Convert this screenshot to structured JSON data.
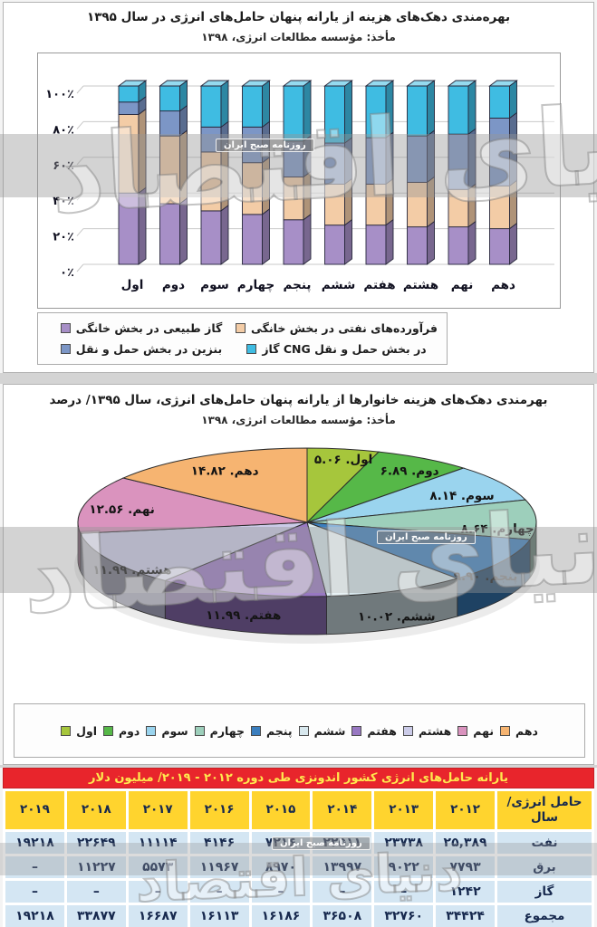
{
  "bar_section": {
    "title": "بهره‌مندی دهک‌های هزینه از یارانه پنهان حامل‌های انرژی در سال ۱۳۹۵",
    "source": "مأخذ: مؤسسه مطالعات انرژی، ۱۳۹۸"
  },
  "pie_section": {
    "title": "بهرمندی دهک‌های هزینه خانوارها از یارانه پنهان حامل‌های انرژی، سال ۱۳۹۵/ درصد",
    "source": "مأخذ: مؤسسه مطالعات انرژی، ۱۳۹۸"
  },
  "watermark": {
    "badge": "روزنامه صبح ایران",
    "brand": "دنیای اقتصاد"
  },
  "chart_data": [
    {
      "type": "bar",
      "subtype": "stacked-100-3d",
      "title": "بهره‌مندی دهک‌های هزینه از یارانه پنهان حامل‌های انرژی در سال ۱۳۹۵",
      "source": "مأخذ: مؤسسه مطالعات انرژی، ۱۳۹۸",
      "categories": [
        "اول",
        "دوم",
        "سوم",
        "چهارم",
        "پنجم",
        "ششم",
        "هفتم",
        "هشتم",
        "نهم",
        "دهم"
      ],
      "y_tick_labels": [
        "۰٪",
        "۲۰٪",
        "۴۰٪",
        "۶۰٪",
        "۸۰٪",
        "۱۰۰٪"
      ],
      "ylim": [
        0,
        100
      ],
      "grid": true,
      "legend_position": "bottom",
      "series": [
        {
          "name": "گاز طبیعی در بخش خانگی",
          "color": "#A78FC7",
          "values": [
            40,
            34,
            30,
            28,
            25,
            22,
            22,
            21,
            21,
            20
          ]
        },
        {
          "name": "فرآورده‌های نفتی در بخش خانگی",
          "color": "#F3CCA6",
          "values": [
            44,
            38,
            33,
            29,
            24,
            23,
            23,
            25,
            21,
            24
          ]
        },
        {
          "name": "بنزین در بخش حمل و نقل",
          "color": "#7C96C6",
          "values": [
            7,
            14,
            14,
            20,
            20,
            23,
            26,
            26,
            31,
            38
          ]
        },
        {
          "name": "گاز CNG در بخش حمل و نقل",
          "color": "#3FBCE2",
          "values": [
            9,
            14,
            23,
            23,
            31,
            32,
            29,
            28,
            27,
            18
          ]
        }
      ]
    },
    {
      "type": "pie",
      "subtype": "pie-3d",
      "title": "بهرمندی دهک‌های هزینه خانوارها از یارانه پنهان حامل‌های انرژی، سال ۱۳۹۵/ درصد",
      "source": "مأخذ: مؤسسه مطالعات انرژی، ۱۳۹۸",
      "labels": [
        "اول",
        "دوم",
        "سوم",
        "چهارم",
        "پنجم",
        "ششم",
        "هفتم",
        "هشتم",
        "نهم",
        "دهم"
      ],
      "values": [
        5.06,
        6.89,
        8.14,
        8.64,
        9.9,
        10.02,
        11.99,
        11.99,
        12.56,
        14.82
      ],
      "display_values": [
        "۵.۰۶",
        "۶.۸۹",
        "۸.۱۴",
        "۸.۶۴",
        "۹.۹۰",
        "۱۰.۰۲",
        "۱۱.۹۹",
        "۱۱.۹۹",
        "۱۲.۵۶",
        "۱۴.۸۲"
      ],
      "colors": [
        "#A6C63C",
        "#56B848",
        "#9AD4EE",
        "#9DCFBB",
        "#3A7EBE",
        "#D8E8EE",
        "#9878C2",
        "#CBCBE8",
        "#DA93BE",
        "#F6B471"
      ],
      "legend_position": "bottom",
      "start_angle_deg": 0,
      "direction": "clockwise"
    },
    {
      "type": "table",
      "title": "یارانه حامل‌های انرژی کشور اندونزی طی دوره ۲۰۱۲ - ۲۰۱۹/ میلیون دلار",
      "header_bg": "#ffd42e",
      "title_bg": "#e8252c",
      "title_color": "#ffe94e",
      "cell_bg": "#d4e6f3",
      "columns": [
        "حامل انرژی/ سال",
        "۲۰۱۲",
        "۲۰۱۳",
        "۲۰۱۴",
        "۲۰۱۵",
        "۲۰۱۶",
        "۲۰۱۷",
        "۲۰۱۸",
        "۲۰۱۹"
      ],
      "rows": [
        {
          "label": "نفت",
          "cells": [
            "۲۵,۳۸۹",
            "۲۳۷۳۸",
            "۲۲۵۱۱",
            "۷۲۱۶",
            "۴۱۴۶",
            "۱۱۱۱۴",
            "۲۲۶۴۹",
            "۱۹۲۱۸"
          ]
        },
        {
          "label": "برق",
          "cells": [
            "۷۷۹۳",
            "۹۰۲۲",
            "۱۳۹۹۷",
            "۸۹۷۰",
            "۱۱۹۶۷",
            "۵۵۷۳",
            "۱۱۲۲۷",
            "–"
          ]
        },
        {
          "label": "گاز",
          "cells": [
            "۱۲۴۲",
            "–",
            "–",
            "–",
            "–",
            "–",
            "–",
            "–"
          ]
        },
        {
          "label": "مجموع",
          "cells": [
            "۳۴۴۲۴",
            "۳۲۷۶۰",
            "۳۶۵۰۸",
            "۱۶۱۸۶",
            "۱۶۱۱۳",
            "۱۶۶۸۷",
            "۳۳۸۷۷",
            "۱۹۲۱۸"
          ]
        }
      ]
    }
  ]
}
